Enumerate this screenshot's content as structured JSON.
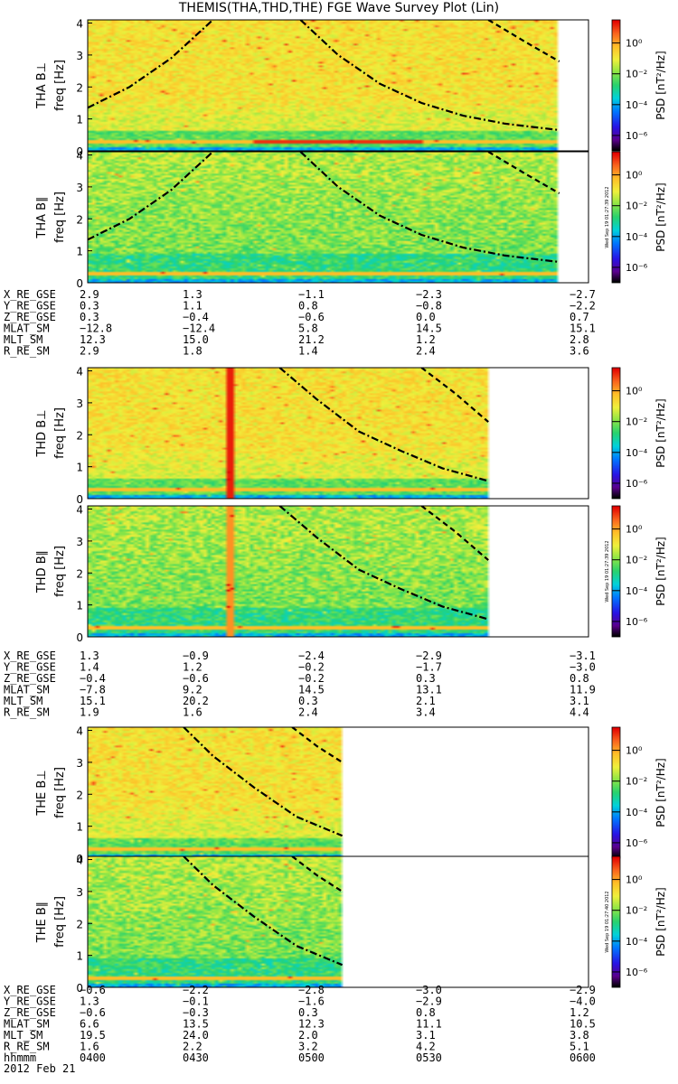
{
  "title": "THEMIS(THA,THD,THE) FGE Wave Survey Plot (Lin)",
  "colorbar": {
    "label_prefix": "PSD",
    "label_units": "[nT²/Hz]",
    "tick_labels": [
      "10⁰",
      "10⁻²",
      "10⁻⁴",
      "10⁻⁶"
    ],
    "tick_values": [
      0,
      -2,
      -4,
      -6
    ],
    "range_log10": [
      -7,
      1.5
    ]
  },
  "timestamp_labels": [
    "Wed Sep 19 01:27:39 2012",
    "Wed Sep 19 01:27:39 2012",
    "Wed Sep 19 01:27:40 2012"
  ],
  "freq_axis": {
    "label": "freq [Hz]",
    "ticks": [
      "0",
      "1",
      "2",
      "3",
      "4"
    ],
    "range": [
      0,
      4.1
    ]
  },
  "time_axis": {
    "label": "hhmmm",
    "ticks": [
      "0400",
      "0430",
      "0500",
      "0530",
      "0600"
    ],
    "date": "2012 Feb 21",
    "range": [
      "0400",
      "0600"
    ]
  },
  "chart_data": [
    {
      "probe": "THA",
      "type": "heatmap",
      "panels": [
        {
          "ylabel": "THA B⊥",
          "component": "perp"
        },
        {
          "ylabel": "THA B∥",
          "component": "par"
        }
      ],
      "data_end": "0553",
      "curves": [
        {
          "style": "dashdot",
          "points": [
            [
              "0400",
              1.35
            ],
            [
              "0410",
              2.0
            ],
            [
              "0420",
              2.9
            ],
            [
              "0430",
              4.1
            ]
          ]
        },
        {
          "style": "dashdot",
          "points": [
            [
              "0451",
              4.1
            ],
            [
              "0500",
              3.0
            ],
            [
              "0510",
              2.1
            ],
            [
              "0520",
              1.5
            ],
            [
              "0530",
              1.1
            ],
            [
              "0540",
              0.85
            ],
            [
              "0553",
              0.65
            ]
          ]
        },
        {
          "style": "dashed",
          "points": [
            [
              "0536",
              4.1
            ],
            [
              "0545",
              3.4
            ],
            [
              "0553",
              2.8
            ]
          ]
        }
      ],
      "ephemeris": {
        "X_RE_GSE": [
          "2.9",
          "1.3",
          "−1.1",
          "−2.3",
          "−2.7"
        ],
        "Y_RE_GSE": [
          "0.3",
          "1.1",
          "0.8",
          "−0.8",
          "−2.2"
        ],
        "Z_RE_GSE": [
          "0.3",
          "−0.4",
          "−0.6",
          "0.0",
          "0.7"
        ],
        "MLAT_SM": [
          "−12.8",
          "−12.4",
          "5.8",
          "14.5",
          "15.1"
        ],
        "MLT_SM": [
          "12.3",
          "15.0",
          "21.2",
          "1.2",
          "2.8"
        ],
        "R_RE_SM": [
          "2.9",
          "1.8",
          "1.4",
          "2.4",
          "3.6"
        ]
      }
    },
    {
      "probe": "THD",
      "type": "heatmap",
      "panels": [
        {
          "ylabel": "THD B⊥",
          "component": "perp"
        },
        {
          "ylabel": "THD B∥",
          "component": "par"
        }
      ],
      "data_end": "0536",
      "spike_time": "0434",
      "curves": [
        {
          "style": "dashdot",
          "points": [
            [
              "0446",
              4.1
            ],
            [
              "0455",
              3.1
            ],
            [
              "0505",
              2.1
            ],
            [
              "0515",
              1.5
            ],
            [
              "0525",
              0.95
            ],
            [
              "0536",
              0.55
            ]
          ]
        },
        {
          "style": "dashed",
          "points": [
            [
              "0520",
              4.1
            ],
            [
              "0528",
              3.3
            ],
            [
              "0536",
              2.4
            ]
          ]
        }
      ],
      "ephemeris": {
        "X_RE_GSE": [
          "1.3",
          "−0.9",
          "−2.4",
          "−2.9",
          "−3.1"
        ],
        "Y_RE_GSE": [
          "1.4",
          "1.2",
          "−0.2",
          "−1.7",
          "−3.0"
        ],
        "Z_RE_GSE": [
          "−0.4",
          "−0.6",
          "−0.2",
          "0.3",
          "0.8"
        ],
        "MLAT_SM": [
          "−7.8",
          "9.2",
          "14.5",
          "13.1",
          "11.9"
        ],
        "MLT_SM": [
          "15.1",
          "20.2",
          "0.3",
          "2.1",
          "3.1"
        ],
        "R_RE_SM": [
          "1.9",
          "1.6",
          "2.4",
          "3.4",
          "4.4"
        ]
      }
    },
    {
      "probe": "THE",
      "type": "heatmap",
      "panels": [
        {
          "ylabel": "THE B⊥",
          "component": "perp"
        },
        {
          "ylabel": "THE B∥",
          "component": "par"
        }
      ],
      "data_end": "0501",
      "curves": [
        {
          "style": "dashdot",
          "points": [
            [
              "0423",
              4.1
            ],
            [
              "0430",
              3.2
            ],
            [
              "0440",
              2.2
            ],
            [
              "0450",
              1.3
            ],
            [
              "0501",
              0.7
            ]
          ]
        },
        {
          "style": "dashed",
          "points": [
            [
              "0449",
              4.1
            ],
            [
              "0455",
              3.5
            ],
            [
              "0501",
              3.0
            ]
          ]
        }
      ],
      "ephemeris": {
        "X_RE_GSE": [
          "−0.6",
          "−2.2",
          "−2.8",
          "−3.0",
          "−2.9"
        ],
        "Y_RE_GSE": [
          "1.3",
          "−0.1",
          "−1.6",
          "−2.9",
          "−4.0"
        ],
        "Z_RE_GSE": [
          "−0.6",
          "−0.3",
          "0.3",
          "0.8",
          "1.2"
        ],
        "MLAT_SM": [
          "6.6",
          "13.5",
          "12.3",
          "11.1",
          "10.5"
        ],
        "MLT_SM": [
          "19.5",
          "24.0",
          "2.0",
          "3.1",
          "3.8"
        ],
        "R_RE_SM": [
          "1.6",
          "2.2",
          "3.2",
          "4.2",
          "5.1"
        ]
      }
    }
  ],
  "ephemeris_labels": [
    "X_RE_GSE",
    "Y_RE_GSE",
    "Z_RE_GSE",
    "MLAT_SM",
    "MLT_SM",
    "R_RE_SM"
  ]
}
